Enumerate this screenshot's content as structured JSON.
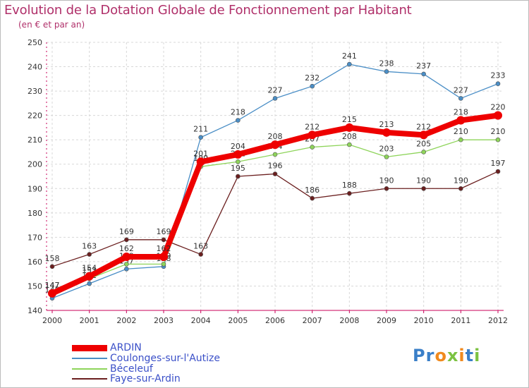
{
  "title": "Evolution de la Dotation Globale de Fonctionnement par Habitant",
  "subtitle": "(en € et par an)",
  "logo": "Proxiti",
  "chart_data": {
    "type": "line",
    "title": "Evolution de la Dotation Globale de Fonctionnement par Habitant",
    "ylabel": "(en € et par an)",
    "xlabel": "",
    "x": [
      "2000",
      "2001",
      "2002",
      "2003",
      "2004",
      "2005",
      "2006",
      "2007",
      "2008",
      "2009",
      "2010",
      "2011",
      "2012"
    ],
    "ylim": [
      140,
      250
    ],
    "yticks": [
      140,
      150,
      160,
      170,
      180,
      190,
      200,
      210,
      220,
      230,
      240,
      250
    ],
    "grid": true,
    "legend_position": "bottom-left",
    "series": [
      {
        "name": "Coulonges-sur-l'Autize",
        "color": "#4a8ec6",
        "values": [
          145,
          151,
          157,
          158,
          211,
          218,
          227,
          232,
          241,
          238,
          237,
          227,
          233
        ]
      },
      {
        "name": "Béceleuf",
        "color": "#8ed45a",
        "values": [
          147,
          153,
          159,
          159,
          199,
          201,
          204,
          207,
          208,
          203,
          205,
          210,
          210
        ]
      },
      {
        "name": "Faye-sur-Ardin",
        "color": "#6b1f1f",
        "values": [
          158,
          163,
          169,
          169,
          163,
          195,
          196,
          186,
          188,
          190,
          190,
          190,
          197
        ]
      },
      {
        "name": "ARDIN",
        "color": "#ee0000",
        "values": [
          147,
          154,
          162,
          162,
          201,
          204,
          208,
          212,
          215,
          213,
          212,
          218,
          220
        ]
      }
    ]
  },
  "legend": [
    {
      "label": "ARDIN",
      "color": "#ee0000"
    },
    {
      "label": "Coulonges-sur-l'Autize",
      "color": "#4a8ec6"
    },
    {
      "label": "Béceleuf",
      "color": "#8ed45a"
    },
    {
      "label": "Faye-sur-Ardin",
      "color": "#6b1f1f"
    }
  ]
}
